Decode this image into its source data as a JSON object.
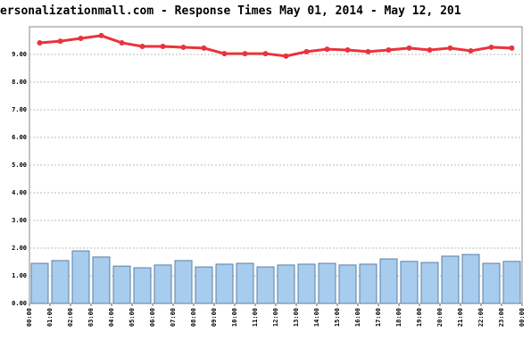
{
  "chart_data": {
    "type": "combo",
    "title": "ersonalizationmall.com - Response Times May 01, 2014 - May 12, 201",
    "x_labels": [
      "00:00",
      "01:00",
      "02:00",
      "03:00",
      "04:00",
      "05:00",
      "06:00",
      "07:00",
      "08:00",
      "09:00",
      "10:00",
      "11:00",
      "12:00",
      "13:00",
      "14:00",
      "15:00",
      "16:00",
      "17:00",
      "18:00",
      "19:00",
      "20:00",
      "21:00",
      "22:00",
      "23:00",
      "00:00"
    ],
    "ylim": [
      0,
      10
    ],
    "yticks": [
      {
        "value": 0,
        "label": "0.00"
      },
      {
        "value": 1,
        "label": "1.00"
      },
      {
        "value": 2,
        "label": "2.00"
      },
      {
        "value": 3,
        "label": "3.00"
      },
      {
        "value": 4,
        "label": "4.00"
      },
      {
        "value": 5,
        "label": "5.00"
      },
      {
        "value": 6,
        "label": "6.00"
      },
      {
        "value": 7,
        "label": "7.00"
      },
      {
        "value": 8,
        "label": "8.00"
      },
      {
        "value": 9,
        "label": "9.00"
      }
    ],
    "grid": true,
    "series": [
      {
        "type": "bar",
        "color": "#a8ccee",
        "values": [
          1.45,
          1.55,
          1.9,
          1.68,
          1.35,
          1.29,
          1.39,
          1.55,
          1.32,
          1.42,
          1.45,
          1.32,
          1.39,
          1.42,
          1.45,
          1.39,
          1.42,
          1.61,
          1.52,
          1.48,
          1.71,
          1.77,
          1.45,
          1.52
        ]
      },
      {
        "type": "line",
        "color": "#e8343c",
        "values": [
          9.42,
          9.48,
          9.58,
          9.68,
          9.42,
          9.29,
          9.29,
          9.26,
          9.23,
          9.03,
          9.03,
          9.03,
          8.94,
          9.1,
          9.19,
          9.16,
          9.1,
          9.16,
          9.23,
          9.16,
          9.23,
          9.13,
          9.26,
          9.23
        ]
      }
    ]
  }
}
